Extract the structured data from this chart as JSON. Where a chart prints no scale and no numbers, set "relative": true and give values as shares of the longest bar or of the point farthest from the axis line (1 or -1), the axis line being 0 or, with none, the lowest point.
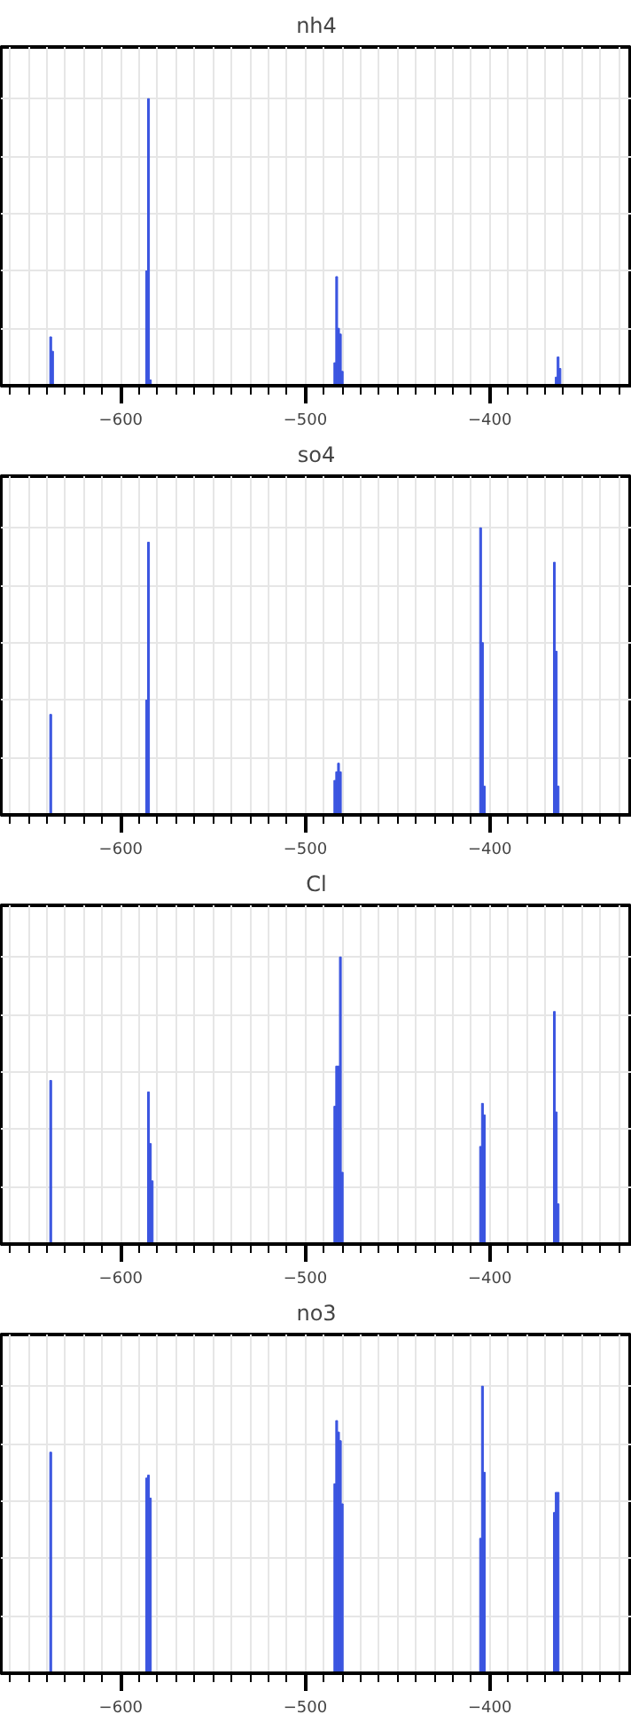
{
  "chart_data": [
    {
      "type": "bar",
      "title": "nh4",
      "relative": true,
      "color": "#3b55e0",
      "grid": true,
      "xlim": [
        -665,
        -323
      ],
      "xticks": [
        {
          "value": -660,
          "label": null
        },
        {
          "value": -650,
          "label": null
        },
        {
          "value": -640,
          "label": null
        },
        {
          "value": -630,
          "label": null
        },
        {
          "value": -620,
          "label": null
        },
        {
          "value": -610,
          "label": null
        },
        {
          "value": -600,
          "label": "−600"
        },
        {
          "value": -590,
          "label": null
        },
        {
          "value": -580,
          "label": null
        },
        {
          "value": -570,
          "label": null
        },
        {
          "value": -560,
          "label": null
        },
        {
          "value": -550,
          "label": null
        },
        {
          "value": -540,
          "label": null
        },
        {
          "value": -530,
          "label": null
        },
        {
          "value": -520,
          "label": null
        },
        {
          "value": -510,
          "label": null
        },
        {
          "value": -500,
          "label": "−500"
        },
        {
          "value": -490,
          "label": null
        },
        {
          "value": -480,
          "label": null
        },
        {
          "value": -470,
          "label": null
        },
        {
          "value": -460,
          "label": null
        },
        {
          "value": -450,
          "label": null
        },
        {
          "value": -440,
          "label": null
        },
        {
          "value": -430,
          "label": null
        },
        {
          "value": -420,
          "label": null
        },
        {
          "value": -410,
          "label": null
        },
        {
          "value": -400,
          "label": "−400"
        },
        {
          "value": -390,
          "label": null
        },
        {
          "value": -380,
          "label": null
        },
        {
          "value": -370,
          "label": null
        },
        {
          "value": -360,
          "label": null
        },
        {
          "value": -350,
          "label": null
        },
        {
          "value": -340,
          "label": null
        },
        {
          "value": -330,
          "label": null
        }
      ],
      "x": [
        -638,
        -637,
        -586,
        -585,
        -584,
        -484,
        -483,
        -482,
        -481,
        -480,
        -364,
        -363,
        -362
      ],
      "values": [
        0.17,
        0.12,
        0.4,
        1.0,
        0.02,
        0.08,
        0.38,
        0.2,
        0.18,
        0.05,
        0.03,
        0.1,
        0.06
      ]
    },
    {
      "type": "bar",
      "title": "so4",
      "relative": true,
      "color": "#3b55e0",
      "grid": true,
      "xlim": [
        -665,
        -323
      ],
      "xticks": [
        {
          "value": -660,
          "label": null
        },
        {
          "value": -650,
          "label": null
        },
        {
          "value": -640,
          "label": null
        },
        {
          "value": -630,
          "label": null
        },
        {
          "value": -620,
          "label": null
        },
        {
          "value": -610,
          "label": null
        },
        {
          "value": -600,
          "label": "−600"
        },
        {
          "value": -590,
          "label": null
        },
        {
          "value": -580,
          "label": null
        },
        {
          "value": -570,
          "label": null
        },
        {
          "value": -560,
          "label": null
        },
        {
          "value": -550,
          "label": null
        },
        {
          "value": -540,
          "label": null
        },
        {
          "value": -530,
          "label": null
        },
        {
          "value": -520,
          "label": null
        },
        {
          "value": -510,
          "label": null
        },
        {
          "value": -500,
          "label": "−500"
        },
        {
          "value": -490,
          "label": null
        },
        {
          "value": -480,
          "label": null
        },
        {
          "value": -470,
          "label": null
        },
        {
          "value": -460,
          "label": null
        },
        {
          "value": -450,
          "label": null
        },
        {
          "value": -440,
          "label": null
        },
        {
          "value": -430,
          "label": null
        },
        {
          "value": -420,
          "label": null
        },
        {
          "value": -410,
          "label": null
        },
        {
          "value": -400,
          "label": "−400"
        },
        {
          "value": -390,
          "label": null
        },
        {
          "value": -380,
          "label": null
        },
        {
          "value": -370,
          "label": null
        },
        {
          "value": -360,
          "label": null
        },
        {
          "value": -350,
          "label": null
        },
        {
          "value": -340,
          "label": null
        },
        {
          "value": -330,
          "label": null
        }
      ],
      "x": [
        -638,
        -586,
        -585,
        -484,
        -483,
        -482,
        -481,
        -405,
        -404,
        -403,
        -365,
        -364,
        -363
      ],
      "values": [
        0.35,
        0.4,
        0.95,
        0.12,
        0.15,
        0.18,
        0.15,
        1.0,
        0.6,
        0.1,
        0.88,
        0.57,
        0.1
      ]
    },
    {
      "type": "bar",
      "title": "Cl",
      "relative": true,
      "color": "#3b55e0",
      "grid": true,
      "xlim": [
        -665,
        -323
      ],
      "xticks": [
        {
          "value": -660,
          "label": null
        },
        {
          "value": -650,
          "label": null
        },
        {
          "value": -640,
          "label": null
        },
        {
          "value": -630,
          "label": null
        },
        {
          "value": -620,
          "label": null
        },
        {
          "value": -610,
          "label": null
        },
        {
          "value": -600,
          "label": "−600"
        },
        {
          "value": -590,
          "label": null
        },
        {
          "value": -580,
          "label": null
        },
        {
          "value": -570,
          "label": null
        },
        {
          "value": -560,
          "label": null
        },
        {
          "value": -550,
          "label": null
        },
        {
          "value": -540,
          "label": null
        },
        {
          "value": -530,
          "label": null
        },
        {
          "value": -520,
          "label": null
        },
        {
          "value": -510,
          "label": null
        },
        {
          "value": -500,
          "label": "−500"
        },
        {
          "value": -490,
          "label": null
        },
        {
          "value": -480,
          "label": null
        },
        {
          "value": -470,
          "label": null
        },
        {
          "value": -460,
          "label": null
        },
        {
          "value": -450,
          "label": null
        },
        {
          "value": -440,
          "label": null
        },
        {
          "value": -430,
          "label": null
        },
        {
          "value": -420,
          "label": null
        },
        {
          "value": -410,
          "label": null
        },
        {
          "value": -400,
          "label": "−400"
        },
        {
          "value": -390,
          "label": null
        },
        {
          "value": -380,
          "label": null
        },
        {
          "value": -370,
          "label": null
        },
        {
          "value": -360,
          "label": null
        },
        {
          "value": -350,
          "label": null
        },
        {
          "value": -340,
          "label": null
        },
        {
          "value": -330,
          "label": null
        }
      ],
      "x": [
        -638,
        -585,
        -584,
        -583,
        -484,
        -483,
        -482,
        -481,
        -480,
        -405,
        -404,
        -403,
        -365,
        -364,
        -363
      ],
      "values": [
        0.57,
        0.53,
        0.35,
        0.22,
        0.48,
        0.62,
        0.62,
        1.0,
        0.25,
        0.34,
        0.49,
        0.45,
        0.81,
        0.46,
        0.14
      ]
    },
    {
      "type": "bar",
      "title": "no3",
      "relative": true,
      "color": "#3b55e0",
      "grid": true,
      "xlim": [
        -665,
        -323
      ],
      "xticks": [
        {
          "value": -660,
          "label": null
        },
        {
          "value": -650,
          "label": null
        },
        {
          "value": -640,
          "label": null
        },
        {
          "value": -630,
          "label": null
        },
        {
          "value": -620,
          "label": null
        },
        {
          "value": -610,
          "label": null
        },
        {
          "value": -600,
          "label": "−600"
        },
        {
          "value": -590,
          "label": null
        },
        {
          "value": -580,
          "label": null
        },
        {
          "value": -570,
          "label": null
        },
        {
          "value": -560,
          "label": null
        },
        {
          "value": -550,
          "label": null
        },
        {
          "value": -540,
          "label": null
        },
        {
          "value": -530,
          "label": null
        },
        {
          "value": -520,
          "label": null
        },
        {
          "value": -510,
          "label": null
        },
        {
          "value": -500,
          "label": "−500"
        },
        {
          "value": -490,
          "label": null
        },
        {
          "value": -480,
          "label": null
        },
        {
          "value": -470,
          "label": null
        },
        {
          "value": -460,
          "label": null
        },
        {
          "value": -450,
          "label": null
        },
        {
          "value": -440,
          "label": null
        },
        {
          "value": -430,
          "label": null
        },
        {
          "value": -420,
          "label": null
        },
        {
          "value": -410,
          "label": null
        },
        {
          "value": -400,
          "label": "−400"
        },
        {
          "value": -390,
          "label": null
        },
        {
          "value": -380,
          "label": null
        },
        {
          "value": -370,
          "label": null
        },
        {
          "value": -360,
          "label": null
        },
        {
          "value": -350,
          "label": null
        },
        {
          "value": -340,
          "label": null
        },
        {
          "value": -330,
          "label": null
        }
      ],
      "x": [
        -638,
        -586,
        -585,
        -584,
        -484,
        -483,
        -482,
        -481,
        -480,
        -405,
        -404,
        -403,
        -365,
        -364,
        -363
      ],
      "values": [
        0.77,
        0.68,
        0.69,
        0.61,
        0.66,
        0.88,
        0.84,
        0.81,
        0.59,
        0.47,
        1.0,
        0.7,
        0.56,
        0.63,
        0.63
      ]
    }
  ]
}
